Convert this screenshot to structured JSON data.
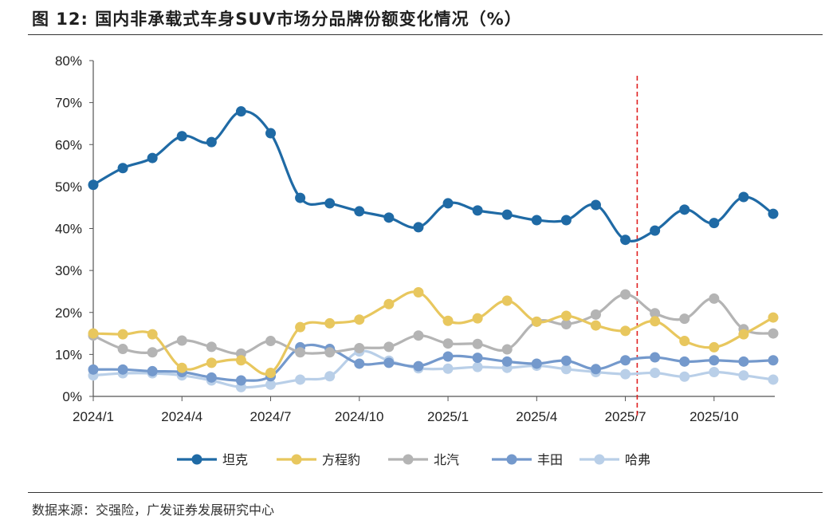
{
  "title": "图 12:  国内非承载式车身SUV市场分品牌份额变化情况（%）",
  "source": "数据来源：交强险，广发证券发展研究中心",
  "chart_data": {
    "type": "line",
    "title": "国内非承载式车身SUV市场分品牌份额变化情况（%）",
    "xlabel": "",
    "ylabel": "",
    "ylim": [
      0,
      80
    ],
    "yticks": [
      "0%",
      "10%",
      "20%",
      "30%",
      "40%",
      "50%",
      "60%",
      "70%",
      "80%"
    ],
    "xtick_labels": [
      "2024/1",
      "2024/4",
      "2024/7",
      "2024/10",
      "2025/1",
      "2025/4",
      "2025/7",
      "2025/10"
    ],
    "x": [
      "2024/1",
      "2024/2",
      "2024/3",
      "2024/4",
      "2024/5",
      "2024/6",
      "2024/7",
      "2024/8",
      "2024/9",
      "2024/10",
      "2024/11",
      "2024/12",
      "2025/1",
      "2025/2",
      "2025/3",
      "2025/4",
      "2025/5",
      "2025/6",
      "2025/7",
      "2025/8",
      "2025/9",
      "2025/10",
      "2025/11",
      "2025/12"
    ],
    "legend_position": "bottom",
    "vline": {
      "between": [
        "2025/7",
        "2025/8"
      ],
      "color": "#e02020",
      "style": "dashed"
    },
    "series": [
      {
        "name": "坦克",
        "color": "#1f6aa5",
        "values": [
          50.4,
          54.4,
          56.8,
          62.0,
          60.6,
          67.9,
          62.7,
          47.3,
          46.0,
          44.1,
          42.6,
          40.3,
          46.0,
          44.3,
          43.3,
          42.0,
          42.0,
          45.6,
          37.3,
          39.5,
          44.5,
          41.3,
          47.5,
          43.5
        ]
      },
      {
        "name": "方程豹",
        "color": "#e8c75e",
        "values": [
          15.0,
          14.8,
          14.8,
          6.8,
          8.0,
          8.6,
          5.6,
          16.5,
          17.4,
          18.3,
          22.0,
          24.8,
          18.0,
          18.6,
          22.8,
          17.8,
          19.2,
          16.9,
          15.6,
          17.9,
          13.2,
          11.7,
          14.8,
          18.8
        ]
      },
      {
        "name": "北汽",
        "color": "#b4b4b4",
        "values": [
          14.5,
          11.3,
          10.5,
          13.3,
          11.8,
          10.2,
          13.2,
          10.5,
          10.5,
          11.5,
          11.8,
          14.5,
          12.6,
          12.5,
          11.2,
          17.8,
          17.2,
          19.5,
          24.3,
          19.8,
          18.5,
          23.3,
          16.0,
          15.0
        ]
      },
      {
        "name": "丰田",
        "color": "#7499cc",
        "values": [
          6.4,
          6.4,
          6.0,
          5.8,
          4.5,
          3.8,
          4.8,
          11.7,
          11.3,
          7.8,
          8.0,
          7.2,
          9.5,
          9.2,
          8.3,
          7.8,
          8.5,
          6.5,
          8.6,
          9.3,
          8.3,
          8.6,
          8.3,
          8.6
        ]
      },
      {
        "name": "哈弗",
        "color": "#b9cfe8",
        "values": [
          5.0,
          5.5,
          5.5,
          5.0,
          3.8,
          2.2,
          2.8,
          4.0,
          4.8,
          10.7,
          8.5,
          6.7,
          6.6,
          7.0,
          6.8,
          7.3,
          6.5,
          5.8,
          5.3,
          5.6,
          4.7,
          5.8,
          5.0,
          4.0
        ]
      }
    ]
  }
}
